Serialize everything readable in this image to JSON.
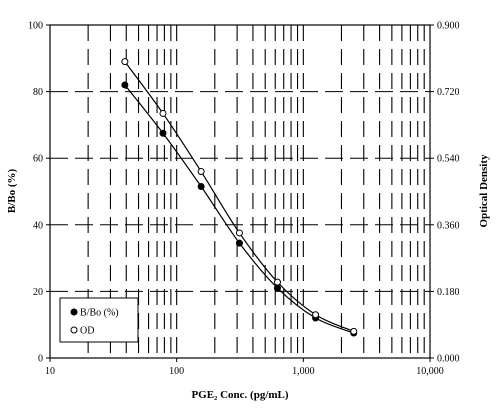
{
  "chart_data": {
    "type": "line",
    "title": "",
    "xlabel": "PGE₂ Conc. (pg/mL)",
    "ylabel": "B/Bo (%)",
    "y2label": "Optical Density",
    "x_scale": "log",
    "xlim": [
      10,
      10000
    ],
    "ylim": [
      0,
      100
    ],
    "y2lim": [
      0,
      0.9
    ],
    "x_ticks": [
      10,
      100,
      1000,
      10000
    ],
    "x_tick_labels": [
      "10",
      "100",
      "1,000",
      "10,000"
    ],
    "y_ticks": [
      0,
      20,
      40,
      60,
      80,
      100
    ],
    "y_tick_labels": [
      "0",
      "20",
      "40",
      "60",
      "80",
      "100"
    ],
    "y2_ticks": [
      0,
      0.18,
      0.36,
      0.54,
      0.72,
      0.9
    ],
    "y2_tick_labels": [
      "0.000",
      "0.180",
      "0.360",
      "0.540",
      "0.720",
      "0.900"
    ],
    "grid": true,
    "legend_position": "bottom-left",
    "series": [
      {
        "name": "B/Bo (%)",
        "axis": "left",
        "marker": "filled-circle",
        "x": [
          39,
          78,
          156,
          313,
          625,
          1250,
          2500
        ],
        "y": [
          82,
          67.5,
          51.5,
          34.5,
          21,
          12,
          7.5
        ]
      },
      {
        "name": "OD",
        "axis": "right",
        "marker": "open-circle",
        "x": [
          39,
          78,
          156,
          313,
          625,
          1250,
          2500
        ],
        "y": [
          0.801,
          0.661,
          0.504,
          0.338,
          0.205,
          0.117,
          0.072
        ]
      }
    ]
  }
}
